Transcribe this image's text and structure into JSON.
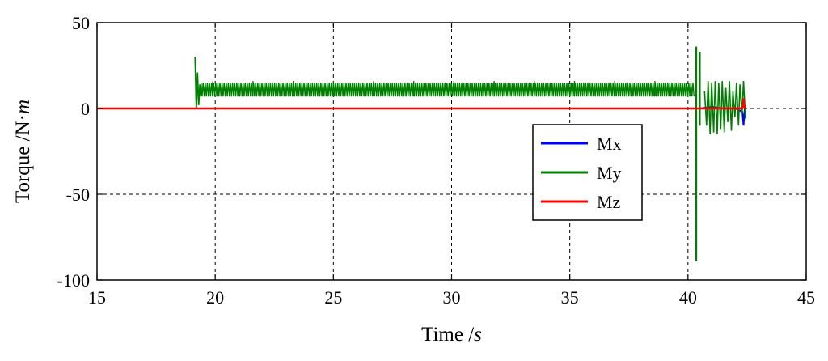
{
  "chart_data": {
    "type": "line",
    "xlabel": "Time /",
    "xlabel_unit": "s",
    "ylabel": "Torque /N·",
    "ylabel_unit": "m",
    "xlim": [
      15,
      45
    ],
    "ylim": [
      -100,
      50
    ],
    "x_ticks": [
      15,
      20,
      25,
      30,
      35,
      40,
      45
    ],
    "x_tick_labels": [
      "15",
      "20",
      "25",
      "30",
      "35",
      "40",
      "45"
    ],
    "y_ticks": [
      50,
      0,
      -50,
      -100
    ],
    "y_tick_labels": [
      "50",
      "0",
      "-50",
      "-100"
    ],
    "grid": true,
    "grid_style": "dashed",
    "legend_position": "center-right",
    "series": [
      {
        "name": "Mx",
        "color": "#0000ff",
        "description": "near zero throughout, small dip to about -10 at end",
        "x": [
          15,
          40.5,
          41.0,
          41.5,
          42.0,
          42.3,
          42.35,
          42.4
        ],
        "y": [
          0,
          0,
          1,
          0,
          0,
          -2,
          -10,
          0
        ]
      },
      {
        "name": "My",
        "color": "#008000",
        "description": "zero until ~19 s, dense oscillation 8–14 N·m from 19.3 to 40.3 s, spikes to +36/-89 at ~40.3 s, oscillation until 42.4 s",
        "segments": [
          {
            "x": [
              15,
              19.1
            ],
            "y": [
              0,
              0
            ]
          },
          {
            "x": [
              19.15,
              19.2,
              19.25,
              19.3,
              19.35,
              19.4
            ],
            "y": [
              30,
              0,
              21,
              2,
              14,
              7
            ]
          }
        ],
        "band": {
          "x_start": 19.4,
          "x_end": 40.3,
          "y_low": 7,
          "y_high": 15,
          "spike_high": 16
        },
        "spikes": [
          {
            "x": 40.35,
            "y_low": -89,
            "y_high": 36
          },
          {
            "x": 40.5,
            "y_low": -10,
            "y_high": 33
          }
        ],
        "tail": {
          "x": [
            40.7,
            40.85,
            41.0,
            41.15,
            41.3,
            41.45,
            41.6,
            41.75,
            41.9,
            42.05,
            42.2,
            42.35
          ],
          "y_high": [
            10,
            16,
            15,
            16,
            15,
            16,
            12,
            16,
            10,
            15,
            14,
            16
          ],
          "y_low": [
            -10,
            -15,
            -14,
            -15,
            -12,
            -14,
            -8,
            -13,
            -5,
            -10,
            -3,
            -6
          ]
        }
      },
      {
        "name": "Mz",
        "color": "#ff0000",
        "description": "zero throughout, small rise to ~6 at end",
        "x": [
          15,
          42.3,
          42.35,
          42.4
        ],
        "y": [
          0,
          0,
          6,
          0
        ]
      }
    ]
  }
}
